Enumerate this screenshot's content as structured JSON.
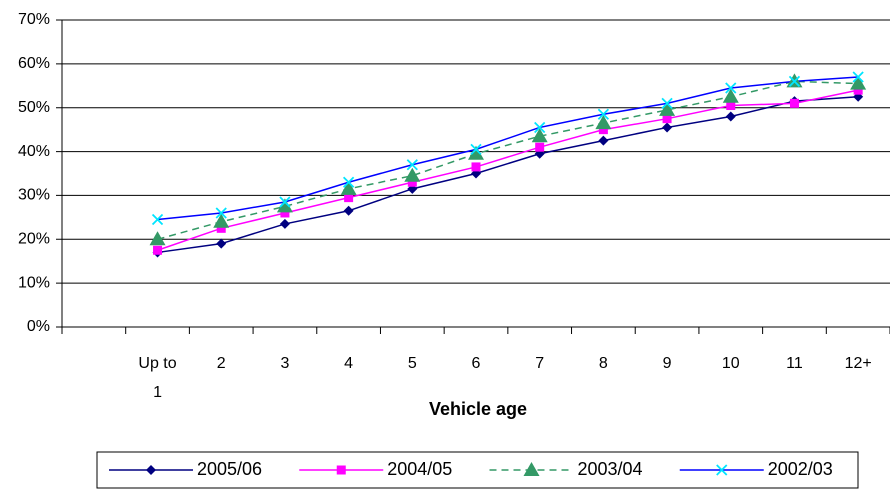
{
  "chart_data": {
    "type": "line",
    "x_label": "Vehicle age",
    "categories": [
      null,
      "Up to 1",
      "2",
      "3",
      "4",
      "5",
      "6",
      "7",
      "8",
      "9",
      "10",
      "11",
      "12+"
    ],
    "series": [
      {
        "name": "2005/06",
        "color": "#000080",
        "marker_color": "#000080",
        "marker": "diamond",
        "dash": false,
        "values": [
          null,
          17,
          19,
          23.5,
          26.5,
          31.5,
          35,
          39.5,
          42.5,
          45.5,
          48,
          51.5,
          52.5
        ]
      },
      {
        "name": "2004/05",
        "color": "#ff00ff",
        "marker_color": "#ff00ff",
        "marker": "square",
        "dash": false,
        "values": [
          null,
          17.5,
          22.5,
          26,
          29.5,
          33,
          36.5,
          41,
          45,
          47.5,
          50.5,
          51,
          54
        ]
      },
      {
        "name": "2003/04",
        "color": "#339966",
        "marker_color": "#339966",
        "marker": "triangle",
        "dash": true,
        "values": [
          null,
          20,
          24,
          27.5,
          31.5,
          34.5,
          39.5,
          43.5,
          46.5,
          49.5,
          52.5,
          56,
          55.5
        ]
      },
      {
        "name": "2002/03",
        "color": "#0000ff",
        "marker_color": "#00e5ff",
        "marker": "x",
        "dash": false,
        "values": [
          null,
          24.5,
          26,
          28.5,
          33,
          37,
          40.5,
          45.5,
          48.5,
          51,
          54.5,
          56,
          57
        ]
      }
    ],
    "ylim": [
      0,
      70
    ],
    "yticks": [
      {
        "value": 0,
        "label": "0%"
      },
      {
        "value": 10,
        "label": "10%"
      },
      {
        "value": 20,
        "label": "20%"
      },
      {
        "value": 30,
        "label": "30%"
      },
      {
        "value": 40,
        "label": "40%"
      },
      {
        "value": 50,
        "label": "50%"
      },
      {
        "value": 60,
        "label": "60%"
      },
      {
        "value": 70,
        "label": "70%"
      }
    ],
    "grid": true,
    "legend": "bottom"
  }
}
